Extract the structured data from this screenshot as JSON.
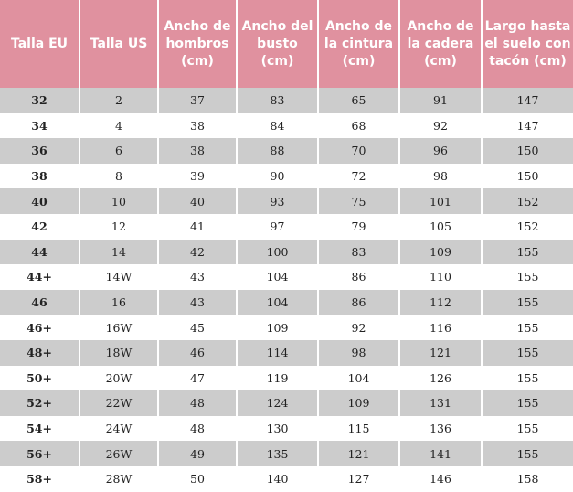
{
  "table": {
    "headers": [
      "Talla EU",
      "Talla US",
      "Ancho de hombros (cm)",
      "Ancho del busto (cm)",
      "Ancho de la cintura (cm)",
      "Ancho de la cadera (cm)",
      "Largo hasta el suelo con tacón (cm)"
    ],
    "rows": [
      [
        "32",
        "2",
        "37",
        "83",
        "65",
        "91",
        "147"
      ],
      [
        "34",
        "4",
        "38",
        "84",
        "68",
        "92",
        "147"
      ],
      [
        "36",
        "6",
        "38",
        "88",
        "70",
        "96",
        "150"
      ],
      [
        "38",
        "8",
        "39",
        "90",
        "72",
        "98",
        "150"
      ],
      [
        "40",
        "10",
        "40",
        "93",
        "75",
        "101",
        "152"
      ],
      [
        "42",
        "12",
        "41",
        "97",
        "79",
        "105",
        "152"
      ],
      [
        "44",
        "14",
        "42",
        "100",
        "83",
        "109",
        "155"
      ],
      [
        "44+",
        "14W",
        "43",
        "104",
        "86",
        "110",
        "155"
      ],
      [
        "46",
        "16",
        "43",
        "104",
        "86",
        "112",
        "155"
      ],
      [
        "46+",
        "16W",
        "45",
        "109",
        "92",
        "116",
        "155"
      ],
      [
        "48+",
        "18W",
        "46",
        "114",
        "98",
        "121",
        "155"
      ],
      [
        "50+",
        "20W",
        "47",
        "119",
        "104",
        "126",
        "155"
      ],
      [
        "52+",
        "22W",
        "48",
        "124",
        "109",
        "131",
        "155"
      ],
      [
        "54+",
        "24W",
        "48",
        "130",
        "115",
        "136",
        "155"
      ],
      [
        "56+",
        "26W",
        "49",
        "135",
        "121",
        "141",
        "155"
      ],
      [
        "58+",
        "28W",
        "50",
        "140",
        "127",
        "146",
        "158"
      ]
    ]
  },
  "colors": {
    "header_bg": "#e0919f",
    "stripe_bg": "#cccccc"
  }
}
